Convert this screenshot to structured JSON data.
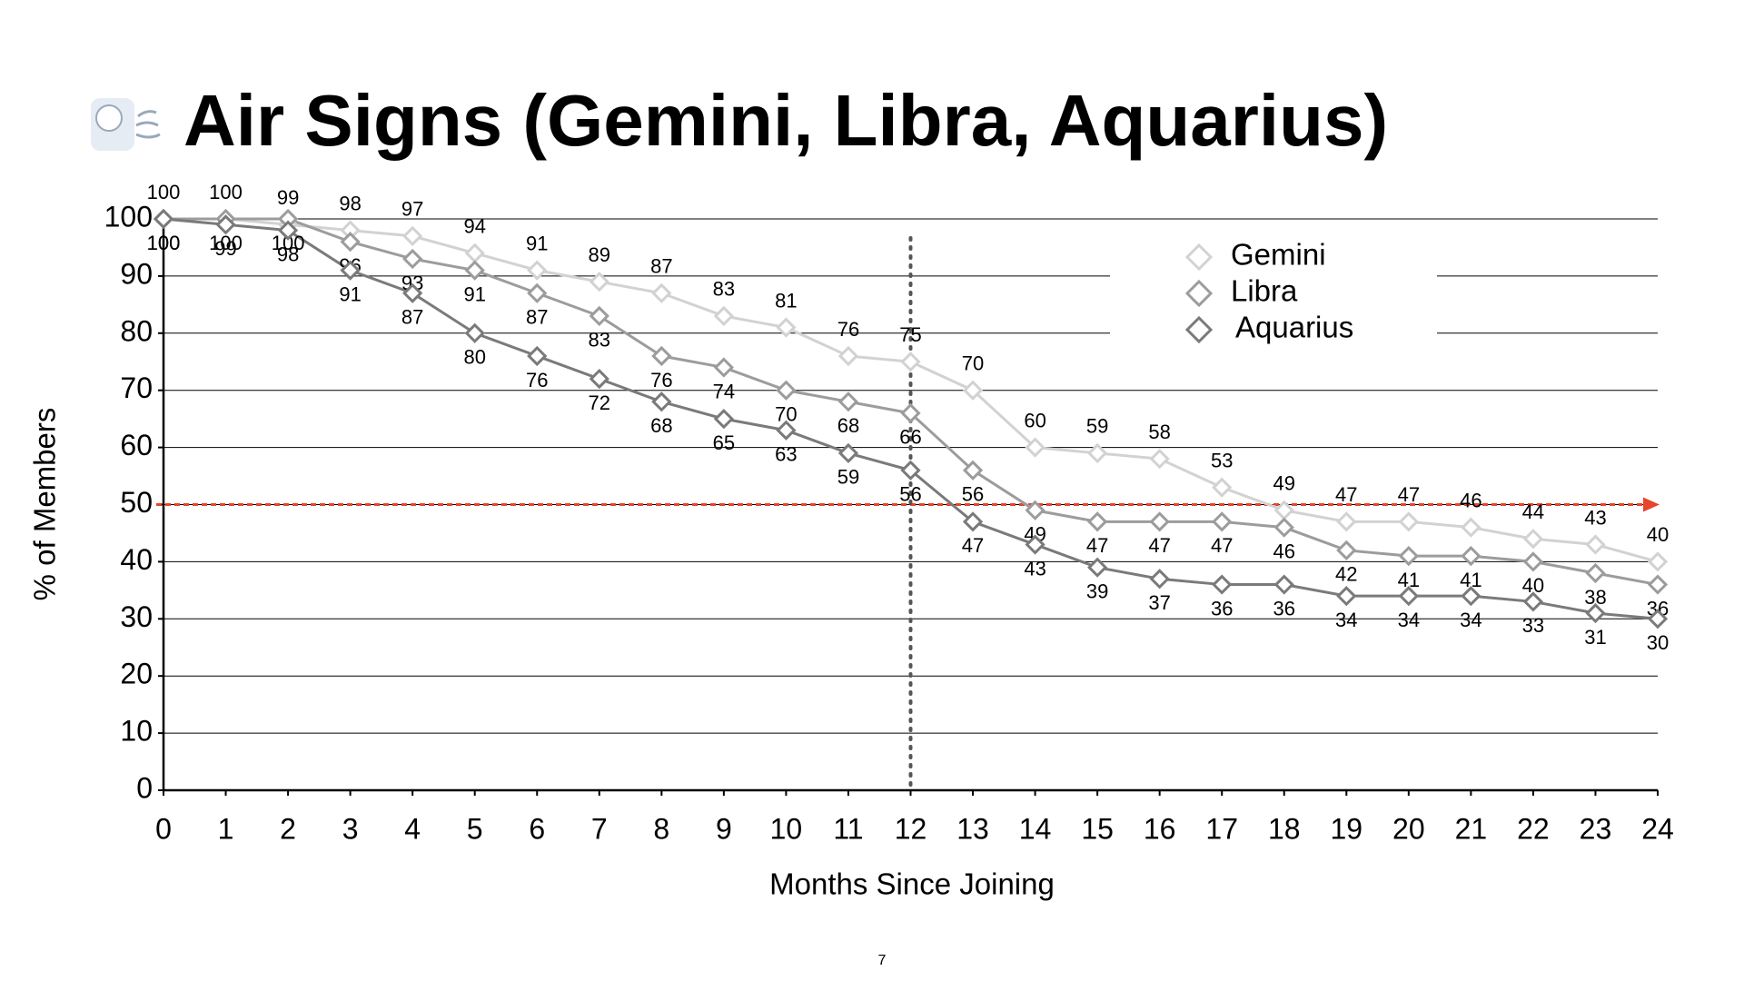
{
  "chart_data": {
    "type": "line",
    "title": "Air Signs (Gemini, Libra, Aquarius)",
    "x_label": "Months Since Joining",
    "y_label": "% of Members",
    "page_number": "7",
    "x": [
      0,
      1,
      2,
      3,
      4,
      5,
      6,
      7,
      8,
      9,
      10,
      11,
      12,
      13,
      14,
      15,
      16,
      17,
      18,
      19,
      20,
      21,
      22,
      23,
      24
    ],
    "series": [
      {
        "name": "Gemini",
        "color": "#d2d2d2",
        "values": [
          100,
          100,
          99,
          98,
          97,
          94,
          91,
          89,
          87,
          83,
          81,
          76,
          75,
          70,
          60,
          59,
          58,
          53,
          49,
          47,
          47,
          46,
          44,
          43,
          40
        ]
      },
      {
        "name": "Libra",
        "color": "#9c9c9c",
        "values": [
          100,
          100,
          100,
          96,
          93,
          91,
          87,
          83,
          76,
          74,
          70,
          68,
          66,
          56,
          49,
          47,
          47,
          47,
          46,
          42,
          41,
          41,
          40,
          38,
          36
        ]
      },
      {
        "name": "Aquarius",
        "color": "#7a7a7a",
        "values": [
          100,
          99,
          98,
          91,
          87,
          80,
          76,
          72,
          68,
          65,
          63,
          59,
          56,
          47,
          43,
          39,
          37,
          36,
          36,
          34,
          34,
          34,
          33,
          31,
          30
        ]
      }
    ],
    "xlim": [
      0,
      24
    ],
    "xticks": [
      0,
      1,
      2,
      3,
      4,
      5,
      6,
      7,
      8,
      9,
      10,
      11,
      12,
      13,
      14,
      15,
      16,
      17,
      18,
      19,
      20,
      21,
      22,
      23,
      24
    ],
    "ylim": [
      0,
      100
    ],
    "yticks": [
      0,
      10,
      20,
      30,
      40,
      50,
      60,
      70,
      80,
      90,
      100
    ],
    "grid": true,
    "reference_lines": [
      {
        "axis": "y",
        "value": 50,
        "color": "#e8452c"
      },
      {
        "axis": "x",
        "value": 12,
        "color": "#555555"
      }
    ]
  }
}
